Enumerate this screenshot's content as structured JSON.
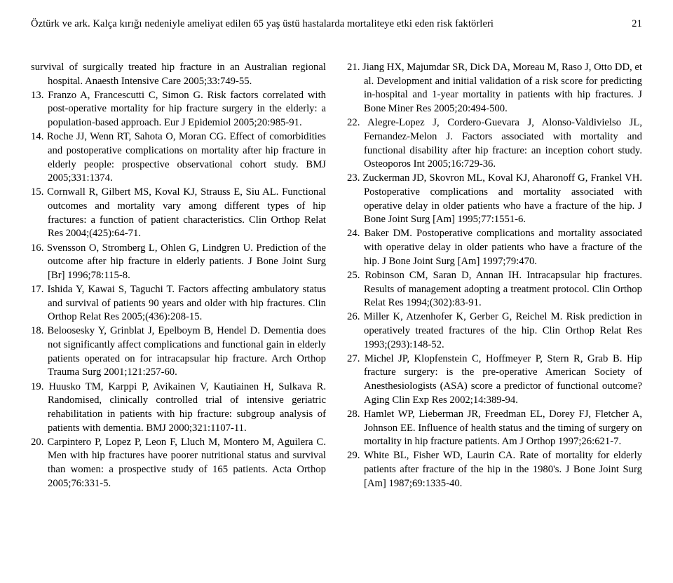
{
  "header": {
    "title_left": "Öztürk ve ark. Kalça kırığı nedeniyle ameliyat edilen 65 yaş üstü hastalarda mortaliteye etki eden risk faktörleri",
    "page_number": "21"
  },
  "references": [
    {
      "num": "",
      "text": "survival of surgically treated hip fracture in an Australian regional hospital. Anaesth Intensive Care 2005;33:749-55."
    },
    {
      "num": "13.",
      "text": "Franzo A, Francescutti C, Simon G. Risk factors correlated with post-operative mortality for hip fracture surgery in the elderly: a population-based approach. Eur J Epidemiol 2005;20:985-91."
    },
    {
      "num": "14.",
      "text": "Roche JJ, Wenn RT, Sahota O, Moran CG. Effect of comorbidities and postoperative complications on mortality after hip fracture in elderly people: prospective observational cohort study. BMJ 2005;331:1374."
    },
    {
      "num": "15.",
      "text": "Cornwall R, Gilbert MS, Koval KJ, Strauss E, Siu AL. Functional outcomes and mortality vary among different types of hip fractures: a function of patient characteristics. Clin Orthop Relat Res 2004;(425):64-71."
    },
    {
      "num": "16.",
      "text": "Svensson O, Stromberg L, Ohlen G, Lindgren U. Prediction of the outcome after hip fracture in elderly patients. J Bone Joint Surg [Br] 1996;78:115-8."
    },
    {
      "num": "17.",
      "text": "Ishida Y, Kawai S, Taguchi T. Factors affecting ambulatory status and survival of patients 90 years and older with hip fractures. Clin Orthop Relat Res 2005;(436):208-15."
    },
    {
      "num": "18.",
      "text": "Beloosesky Y, Grinblat J, Epelboym B, Hendel D. Dementia does not significantly affect complications and functional gain in elderly patients operated on for intracapsular hip fracture. Arch Orthop Trauma Surg 2001;121:257-60."
    },
    {
      "num": "19.",
      "text": "Huusko TM, Karppi P, Avikainen V, Kautiainen H, Sulkava R. Randomised, clinically controlled trial of intensive geriatric rehabilitation in patients with hip fracture: subgroup analysis of patients with dementia. BMJ 2000;321:1107-11."
    },
    {
      "num": "20.",
      "text": "Carpintero P, Lopez P, Leon F, Lluch M, Montero M, Aguilera C. Men with hip fractures have poorer nutritional status and survival than women: a prospective study of 165 patients. Acta Orthop 2005;76:331-5."
    },
    {
      "num": "21.",
      "text": "Jiang HX, Majumdar SR, Dick DA, Moreau M, Raso J, Otto DD, et al. Development and initial validation of a risk score for predicting in-hospital and 1-year mortality in patients with hip fractures. J Bone Miner Res 2005;20:494-500."
    },
    {
      "num": "22.",
      "text": "Alegre-Lopez J, Cordero-Guevara J, Alonso-Valdivielso JL, Fernandez-Melon J. Factors associated with mortality and functional disability after hip fracture: an inception cohort study. Osteoporos Int 2005;16:729-36."
    },
    {
      "num": "23.",
      "text": "Zuckerman JD, Skovron ML, Koval KJ, Aharonoff G, Frankel VH. Postoperative complications and mortality associated with operative delay in older patients who have a fracture of the hip. J Bone Joint Surg [Am] 1995;77:1551-6."
    },
    {
      "num": "24.",
      "text": "Baker DM. Postoperative complications and mortality associated with operative delay in older patients who have a fracture of the hip. J Bone Joint Surg [Am] 1997;79:470."
    },
    {
      "num": "25.",
      "text": "Robinson CM, Saran D, Annan IH. Intracapsular hip fractures. Results of management adopting a treatment protocol. Clin Orthop Relat Res 1994;(302):83-91."
    },
    {
      "num": "26.",
      "text": "Miller K, Atzenhofer K, Gerber G, Reichel M. Risk prediction in operatively treated fractures of the hip. Clin Orthop Relat Res 1993;(293):148-52."
    },
    {
      "num": "27.",
      "text": "Michel JP, Klopfenstein C, Hoffmeyer P, Stern R, Grab B. Hip fracture surgery: is the pre-operative American Society of Anesthesiologists (ASA) score a predictor of functional outcome? Aging Clin Exp Res 2002;14:389-94."
    },
    {
      "num": "28.",
      "text": "Hamlet WP, Lieberman JR, Freedman EL, Dorey FJ, Fletcher A, Johnson EE. Influence of health status and the timing of surgery on mortality in hip fracture patients. Am J Orthop 1997;26:621-7."
    },
    {
      "num": "29.",
      "text": "White BL, Fisher WD, Laurin CA. Rate of mortality for elderly patients after fracture of the hip in the 1980's. J Bone Joint Surg [Am] 1987;69:1335-40."
    }
  ]
}
